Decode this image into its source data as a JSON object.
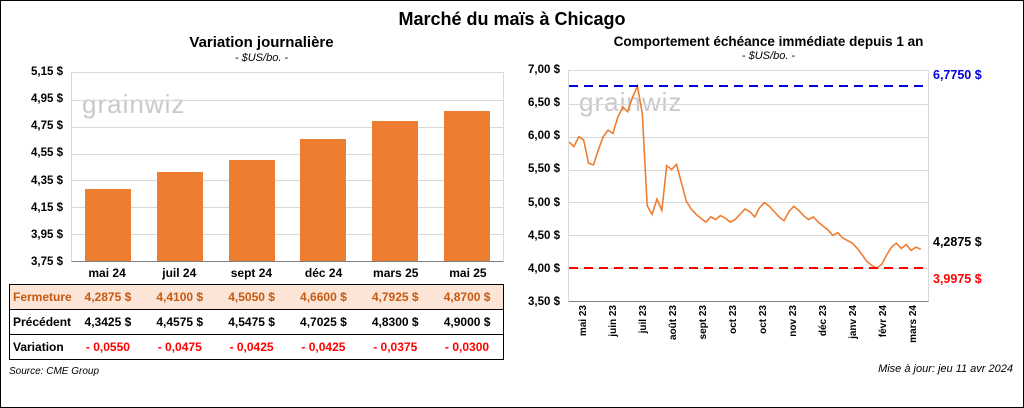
{
  "page_title": "Marché du maïs à Chicago",
  "watermark": "grainwiz",
  "colors": {
    "bar": "#ED7D31",
    "line": "#ED7D31",
    "high_line": "#0000DD",
    "low_line": "#FF0000",
    "fermeture_bg": "#FCE4D6",
    "fermeture_text": "#C55A11",
    "variation_text": "#FF0000",
    "grid": "#D9D9D9"
  },
  "table": {
    "rows": [
      {
        "label": "Fermeture",
        "values": [
          "4,2875 $",
          "4,4100 $",
          "4,5050 $",
          "4,6600 $",
          "4,7925 $",
          "4,8700 $"
        ]
      },
      {
        "label": "Précédent",
        "values": [
          "4,3425 $",
          "4,4575 $",
          "4,5475 $",
          "4,7025 $",
          "4,8300 $",
          "4,9000 $"
        ]
      },
      {
        "label": "Variation",
        "values": [
          "- 0,0550",
          "- 0,0475",
          "- 0,0425",
          "- 0,0425",
          "- 0,0375",
          "- 0,0300"
        ]
      }
    ]
  },
  "footer": {
    "source": "Source: CME Group",
    "updated": "Mise à jour: jeu 11 avr 2024"
  },
  "chart_data": [
    {
      "type": "bar",
      "title": "Variation journalière",
      "subtitle": "- $US/bo. -",
      "categories": [
        "mai 24",
        "juil 24",
        "sept 24",
        "déc 24",
        "mars 25",
        "mai 25"
      ],
      "values": [
        4.2875,
        4.41,
        4.505,
        4.66,
        4.7925,
        4.87
      ],
      "ylim": [
        3.75,
        5.15
      ],
      "yticks": [
        3.75,
        3.95,
        4.15,
        4.35,
        4.55,
        4.75,
        4.95,
        5.15
      ],
      "ytick_labels": [
        "3,75 $",
        "3,95 $",
        "4,15 $",
        "4,35 $",
        "4,55 $",
        "4,75 $",
        "4,95 $",
        "5,15 $"
      ],
      "grid": true,
      "legend": "none",
      "bar_color": "#ED7D31"
    },
    {
      "type": "line",
      "title": "Comportement échéance immédiate depuis 1 an",
      "subtitle": "- $US/bo. -",
      "x_tick_labels": [
        "mai 23",
        "juin 23",
        "juil 23",
        "août 23",
        "sept 23",
        "oct 23",
        "oct 23",
        "nov 23",
        "déc 23",
        "janv 24",
        "févr 24",
        "mars 24"
      ],
      "ylim": [
        3.5,
        7.0
      ],
      "yticks": [
        3.5,
        4.0,
        4.5,
        5.0,
        5.5,
        6.0,
        6.5,
        7.0
      ],
      "ytick_labels": [
        "3,50 $",
        "4,00 $",
        "4,50 $",
        "5,00 $",
        "5,50 $",
        "6,00 $",
        "6,50 $",
        "7,00 $"
      ],
      "grid": true,
      "legend": "none",
      "line_color": "#ED7D31",
      "annotations": {
        "high": {
          "value": 6.775,
          "label": "6,7750 $",
          "color": "#0000DD",
          "style": "dashed"
        },
        "low": {
          "value": 3.9975,
          "label": "3,9975 $",
          "color": "#FF0000",
          "style": "dashed"
        },
        "last": {
          "value": 4.2875,
          "label": "4,2875 $",
          "color": "#000000"
        }
      },
      "series": [
        {
          "name": "échéance immédiate",
          "values": [
            5.92,
            5.85,
            6.0,
            5.95,
            5.6,
            5.57,
            5.8,
            6.0,
            6.1,
            6.05,
            6.3,
            6.45,
            6.38,
            6.6,
            6.77,
            6.35,
            4.95,
            4.82,
            5.05,
            4.88,
            5.56,
            5.5,
            5.58,
            5.3,
            5.02,
            4.9,
            4.82,
            4.76,
            4.7,
            4.78,
            4.74,
            4.8,
            4.76,
            4.7,
            4.74,
            4.82,
            4.9,
            4.86,
            4.78,
            4.92,
            5.0,
            4.94,
            4.86,
            4.78,
            4.72,
            4.86,
            4.94,
            4.88,
            4.8,
            4.74,
            4.78,
            4.7,
            4.64,
            4.58,
            4.5,
            4.54,
            4.46,
            4.42,
            4.38,
            4.3,
            4.2,
            4.1,
            4.04,
            3.9975,
            4.06,
            4.2,
            4.32,
            4.38,
            4.3,
            4.36,
            4.27,
            4.32,
            4.2875
          ]
        }
      ]
    }
  ]
}
